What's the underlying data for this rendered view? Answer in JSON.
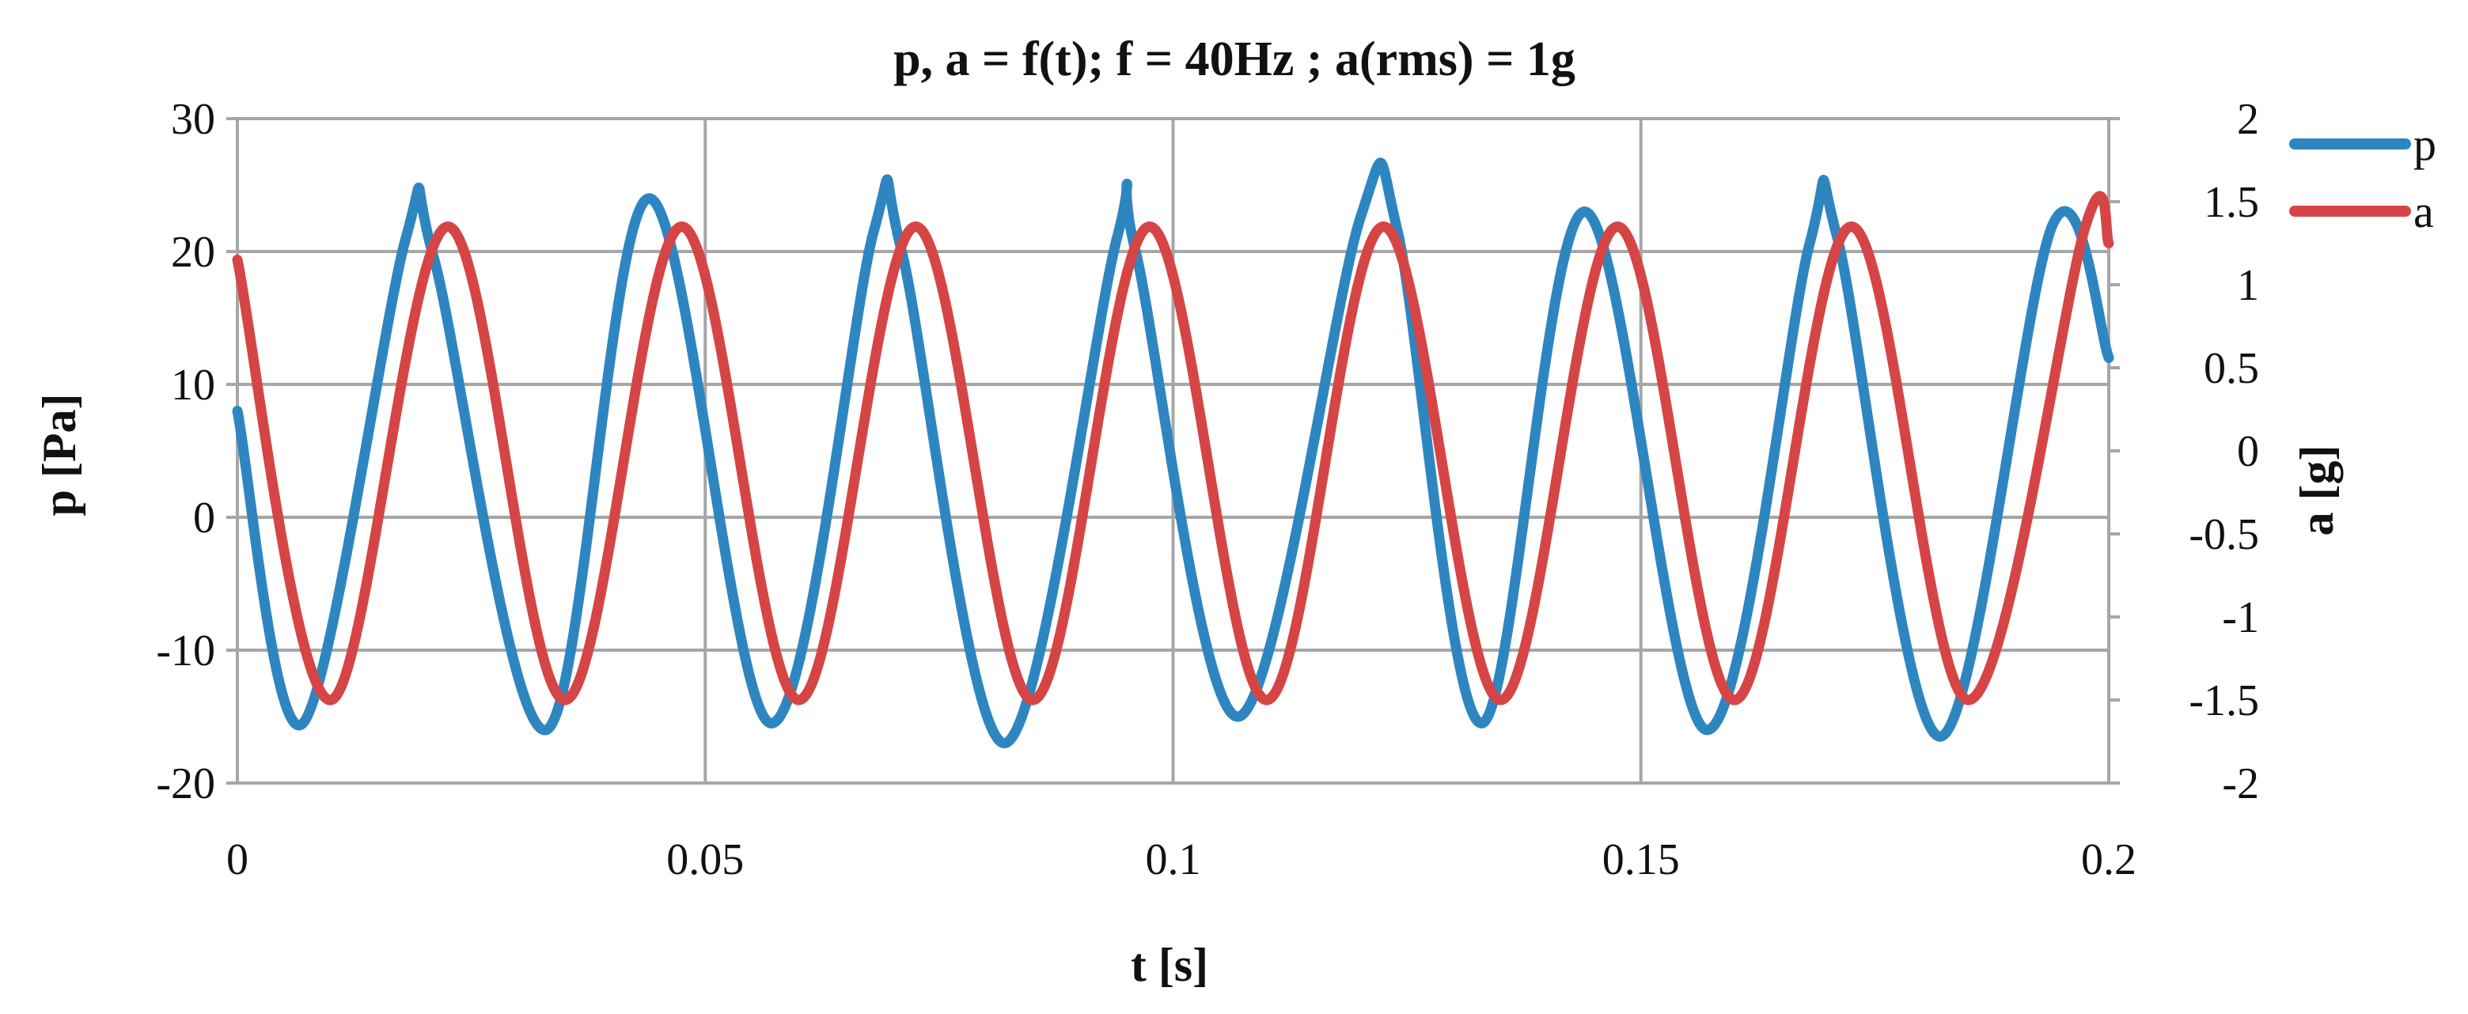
{
  "chart_data": {
    "type": "line",
    "title": "p, a = f(t);  f = 40Hz ;  a(rms) = 1g",
    "xlabel": "t [s]",
    "ylabel_left": "p [Pa]",
    "ylabel_right": "a [g]",
    "xlim": [
      0,
      0.2
    ],
    "ylim_left": [
      -20,
      30
    ],
    "ylim_right": [
      -2,
      2
    ],
    "x_ticks": [
      "0",
      "0.05",
      "0.1",
      "0.15",
      "0.2"
    ],
    "y_left_ticks": [
      "-20",
      "-10",
      "0",
      "10",
      "20",
      "30"
    ],
    "y_right_ticks": [
      "-2",
      "-1.5",
      "-1",
      "-0.5",
      "0",
      "0.5",
      "1",
      "1.5",
      "2"
    ],
    "grid": true,
    "legend_position": "top-right",
    "series": [
      {
        "name": "p",
        "axis": "left",
        "color": "#2e86c1",
        "x": [
          0.0,
          0.007,
          0.018,
          0.021,
          0.033,
          0.044,
          0.057,
          0.068,
          0.071,
          0.082,
          0.094,
          0.096,
          0.107,
          0.12,
          0.124,
          0.133,
          0.144,
          0.157,
          0.168,
          0.171,
          0.182,
          0.194,
          0.2
        ],
        "values": [
          8,
          -15.5,
          21,
          19.5,
          -16,
          24,
          -15.5,
          21.5,
          20,
          -17,
          21,
          20,
          -15,
          22.5,
          21.5,
          -15.5,
          23,
          -16,
          20.5,
          21,
          -16.5,
          22,
          12
        ]
      },
      {
        "name": "a",
        "axis": "right",
        "color": "#d64545",
        "x": [
          0.0,
          0.01,
          0.0225,
          0.035,
          0.0475,
          0.06,
          0.0725,
          0.085,
          0.0975,
          0.11,
          0.1225,
          0.135,
          0.1475,
          0.16,
          0.1725,
          0.185,
          0.1975,
          0.2
        ],
        "values": [
          1.15,
          -1.5,
          1.35,
          -1.5,
          1.35,
          -1.5,
          1.35,
          -1.5,
          1.35,
          -1.5,
          1.35,
          -1.5,
          1.35,
          -1.5,
          1.35,
          -1.5,
          1.35,
          1.25
        ]
      }
    ]
  }
}
